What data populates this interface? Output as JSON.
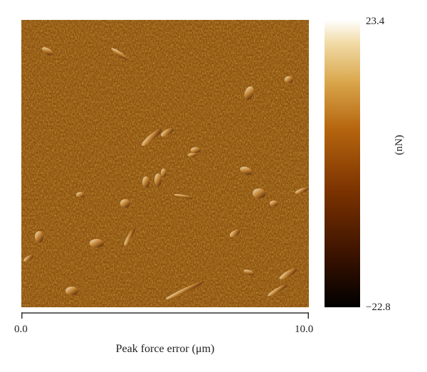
{
  "image": {
    "description_icon": "afm-peak-force-error-map",
    "colormap": [
      "#000000",
      "#3a1200",
      "#7a3200",
      "#b5650e",
      "#d9a54a",
      "#f1dba6",
      "#ffffff"
    ]
  },
  "colorbar": {
    "max_label": "23.4",
    "min_label": "−22.8",
    "unit": "(nN)"
  },
  "axis": {
    "min_label": "0.0",
    "max_label": "10.0",
    "title": "Peak force error (μm)"
  }
}
